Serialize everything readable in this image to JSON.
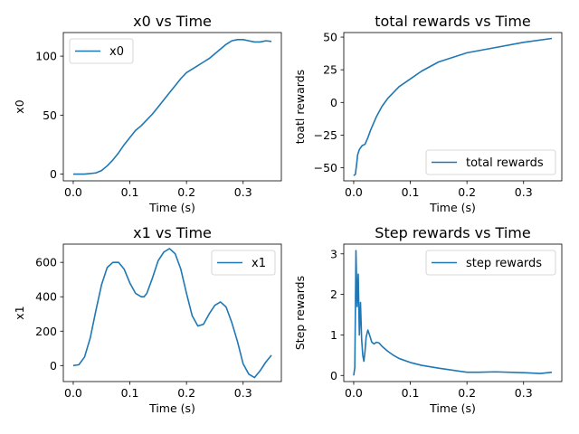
{
  "chart_data": [
    {
      "type": "line",
      "title": "x0 vs Time",
      "xlabel": "Time (s)",
      "ylabel": "x0",
      "xlim": [
        -0.0175,
        0.3675
      ],
      "ylim": [
        -5.7,
        120
      ],
      "xticks": [
        0.0,
        0.1,
        0.2,
        0.3
      ],
      "xtick_labels": [
        "0.0",
        "0.1",
        "0.2",
        "0.3"
      ],
      "yticks": [
        0,
        50,
        100
      ],
      "ytick_labels": [
        "0",
        "50",
        "100"
      ],
      "legend": "top-left",
      "series": [
        {
          "name": "x0",
          "color": "#1f77b4",
          "x": [
            0.0,
            0.02,
            0.04,
            0.05,
            0.06,
            0.07,
            0.08,
            0.09,
            0.1,
            0.11,
            0.12,
            0.13,
            0.14,
            0.15,
            0.16,
            0.17,
            0.18,
            0.19,
            0.2,
            0.21,
            0.22,
            0.23,
            0.24,
            0.25,
            0.26,
            0.27,
            0.28,
            0.29,
            0.3,
            0.31,
            0.32,
            0.33,
            0.34,
            0.35
          ],
          "y": [
            0,
            0,
            1,
            3,
            7,
            12,
            18,
            25,
            31,
            37,
            41,
            46,
            51,
            57,
            63,
            69,
            75,
            81,
            86,
            89,
            92,
            95,
            98,
            102,
            106,
            110,
            113,
            114,
            114,
            113,
            112,
            112,
            113,
            112.5
          ]
        }
      ]
    },
    {
      "type": "line",
      "title": "total rewards vs Time",
      "xlabel": "Time (s)",
      "ylabel": "toatl rewards",
      "xlim": [
        -0.0175,
        0.3675
      ],
      "ylim": [
        -60,
        53.5
      ],
      "xticks": [
        0.0,
        0.1,
        0.2,
        0.3
      ],
      "xtick_labels": [
        "0.0",
        "0.1",
        "0.2",
        "0.3"
      ],
      "yticks": [
        -50,
        -25,
        0,
        25,
        50
      ],
      "ytick_labels": [
        "−50",
        "−25",
        "0",
        "25",
        "50"
      ],
      "legend": "bottom-right",
      "series": [
        {
          "name": "total rewards",
          "color": "#1f77b4",
          "x": [
            0.0,
            0.003,
            0.005,
            0.007,
            0.01,
            0.015,
            0.02,
            0.025,
            0.03,
            0.04,
            0.05,
            0.06,
            0.08,
            0.1,
            0.12,
            0.15,
            0.2,
            0.25,
            0.3,
            0.35
          ],
          "y": [
            -56,
            -55,
            -48,
            -40,
            -36,
            -33,
            -32,
            -27,
            -21,
            -11,
            -3,
            3,
            12,
            18,
            24,
            31,
            38,
            42,
            46,
            49
          ]
        }
      ]
    },
    {
      "type": "line",
      "title": "x1 vs Time",
      "xlabel": "Time (s)",
      "ylabel": "x1",
      "xlim": [
        -0.0175,
        0.3675
      ],
      "ylim": [
        -93,
        706
      ],
      "xticks": [
        0.0,
        0.1,
        0.2,
        0.3
      ],
      "xtick_labels": [
        "0.0",
        "0.1",
        "0.2",
        "0.3"
      ],
      "yticks": [
        0,
        200,
        400,
        600
      ],
      "ytick_labels": [
        "0",
        "200",
        "400",
        "600"
      ],
      "legend": "top-right",
      "series": [
        {
          "name": "x1",
          "color": "#1f77b4",
          "x": [
            0.0,
            0.01,
            0.02,
            0.03,
            0.04,
            0.05,
            0.06,
            0.07,
            0.08,
            0.09,
            0.1,
            0.11,
            0.12,
            0.125,
            0.13,
            0.14,
            0.15,
            0.16,
            0.17,
            0.18,
            0.19,
            0.2,
            0.21,
            0.22,
            0.23,
            0.24,
            0.25,
            0.26,
            0.27,
            0.28,
            0.29,
            0.3,
            0.31,
            0.32,
            0.33,
            0.34,
            0.35
          ],
          "y": [
            0,
            5,
            50,
            160,
            320,
            470,
            570,
            600,
            600,
            560,
            480,
            420,
            400,
            400,
            420,
            510,
            610,
            660,
            680,
            650,
            560,
            420,
            290,
            230,
            240,
            300,
            350,
            370,
            340,
            250,
            140,
            10,
            -50,
            -70,
            -30,
            20,
            60
          ]
        }
      ]
    },
    {
      "type": "line",
      "title": "Step rewards vs Time",
      "xlabel": "Time (s)",
      "ylabel": "Step rewards",
      "xlim": [
        -0.0175,
        0.3675
      ],
      "ylim": [
        -0.15,
        3.24
      ],
      "xticks": [
        0.0,
        0.1,
        0.2,
        0.3
      ],
      "xtick_labels": [
        "0.0",
        "0.1",
        "0.2",
        "0.3"
      ],
      "yticks": [
        0,
        1,
        2,
        3
      ],
      "ytick_labels": [
        "0",
        "1",
        "2",
        "3"
      ],
      "legend": "top-right",
      "series": [
        {
          "name": "step rewards",
          "color": "#1f77b4",
          "x": [
            0.0,
            0.002,
            0.004,
            0.006,
            0.008,
            0.01,
            0.012,
            0.014,
            0.016,
            0.018,
            0.02,
            0.022,
            0.025,
            0.028,
            0.032,
            0.036,
            0.04,
            0.045,
            0.05,
            0.06,
            0.07,
            0.08,
            0.1,
            0.12,
            0.15,
            0.2,
            0.22,
            0.25,
            0.3,
            0.33,
            0.35
          ],
          "y": [
            0.0,
            0.2,
            3.08,
            1.7,
            2.5,
            1.0,
            1.8,
            0.9,
            0.5,
            0.35,
            0.6,
            0.95,
            1.12,
            1.0,
            0.82,
            0.78,
            0.82,
            0.8,
            0.72,
            0.6,
            0.5,
            0.42,
            0.32,
            0.25,
            0.18,
            0.08,
            0.08,
            0.09,
            0.07,
            0.05,
            0.08
          ]
        }
      ]
    }
  ]
}
